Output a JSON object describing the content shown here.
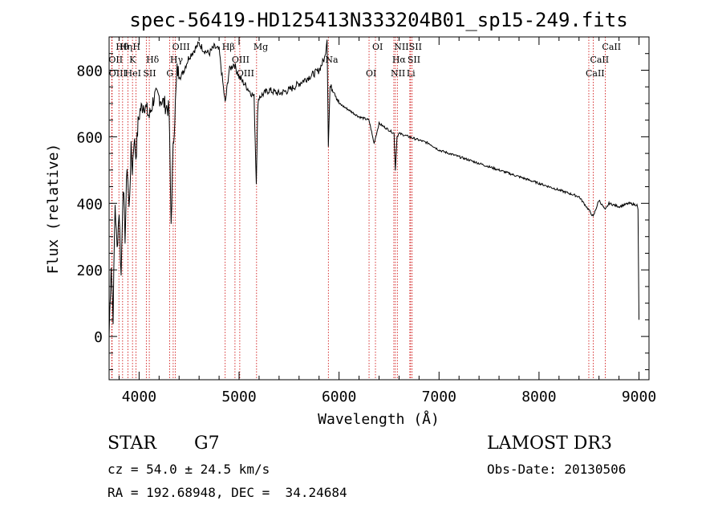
{
  "chart_data": {
    "type": "line",
    "title": "spec-56419-HD125413N333204B01_sp15-249.fits",
    "xlabel": "Wavelength (Å)",
    "ylabel": "Flux (relative)",
    "xlim": [
      3700,
      9100
    ],
    "ylim": [
      -130,
      900
    ],
    "xticks": [
      4000,
      5000,
      6000,
      7000,
      8000,
      9000
    ],
    "yticks": [
      0,
      200,
      400,
      600,
      800
    ],
    "series": [
      {
        "name": "flux",
        "x": [
          3700,
          3720,
          3740,
          3760,
          3780,
          3800,
          3820,
          3840,
          3860,
          3880,
          3900,
          3920,
          3933,
          3950,
          3968,
          3990,
          4010,
          4050,
          4102,
          4150,
          4200,
          4250,
          4300,
          4320,
          4340,
          4380,
          4420,
          4500,
          4550,
          4600,
          4650,
          4700,
          4750,
          4800,
          4861,
          4900,
          4950,
          5000,
          5050,
          5100,
          5150,
          5172,
          5185,
          5200,
          5300,
          5400,
          5500,
          5600,
          5700,
          5800,
          5860,
          5880,
          5893,
          5910,
          5950,
          6000,
          6100,
          6200,
          6300,
          6350,
          6400,
          6500,
          6550,
          6563,
          6580,
          6600,
          6700,
          6800,
          6900,
          7000,
          7200,
          7400,
          7600,
          7800,
          8000,
          8200,
          8400,
          8498,
          8542,
          8600,
          8662,
          8700,
          8800,
          8900,
          8980,
          8990,
          9000
        ],
        "y": [
          0,
          220,
          60,
          400,
          260,
          380,
          180,
          460,
          300,
          520,
          380,
          560,
          500,
          600,
          540,
          640,
          680,
          700,
          660,
          720,
          720,
          700,
          680,
          340,
          560,
          800,
          780,
          840,
          860,
          880,
          860,
          850,
          870,
          860,
          700,
          800,
          820,
          780,
          760,
          740,
          720,
          460,
          680,
          720,
          740,
          730,
          740,
          760,
          780,
          800,
          840,
          900,
          580,
          750,
          740,
          700,
          680,
          660,
          650,
          580,
          640,
          620,
          610,
          500,
          600,
          610,
          600,
          590,
          580,
          560,
          540,
          520,
          500,
          480,
          460,
          440,
          420,
          380,
          360,
          410,
          380,
          400,
          390,
          400,
          395,
          380,
          50
        ]
      }
    ],
    "line_labels": [
      {
        "label": "Hθ",
        "wavelength": 3798
      },
      {
        "label": "OII",
        "wavelength": 3727
      },
      {
        "label": "OIII",
        "wavelength": 3730
      },
      {
        "label": "Hη",
        "wavelength": 3835
      },
      {
        "label": "K",
        "wavelength": 3934
      },
      {
        "label": "HeI",
        "wavelength": 3889
      },
      {
        "label": "H",
        "wavelength": 3968
      },
      {
        "label": "Hδ",
        "wavelength": 4102
      },
      {
        "label": "SII",
        "wavelength": 4072
      },
      {
        "label": "OIII",
        "wavelength": 4363
      },
      {
        "label": "Hγ",
        "wavelength": 4341
      },
      {
        "label": "G",
        "wavelength": 4305
      },
      {
        "label": "Hβ",
        "wavelength": 4861
      },
      {
        "label": "OIII",
        "wavelength": 4959
      },
      {
        "label": "OIII",
        "wavelength": 5007
      },
      {
        "label": "Mg",
        "wavelength": 5175
      },
      {
        "label": "Na",
        "wavelength": 5893
      },
      {
        "label": "OI",
        "wavelength": 6300
      },
      {
        "label": "OI",
        "wavelength": 6364
      },
      {
        "label": "Hα",
        "wavelength": 6563
      },
      {
        "label": "NII",
        "wavelength": 6548
      },
      {
        "label": "NII",
        "wavelength": 6583
      },
      {
        "label": "SII",
        "wavelength": 6716
      },
      {
        "label": "Li",
        "wavelength": 6708
      },
      {
        "label": "SII",
        "wavelength": 6731
      },
      {
        "label": "CaII",
        "wavelength": 8542
      },
      {
        "label": "CaII",
        "wavelength": 8498
      },
      {
        "label": "CaII",
        "wavelength": 8662
      }
    ]
  },
  "info": {
    "object_class": "STAR",
    "subclass": "G7",
    "survey": "LAMOST DR3",
    "redshift": "cz = 54.0 ± 24.5 km/s",
    "obs_date": "Obs-Date: 20130506",
    "coords": "RA = 192.68948, DEC =  34.24684"
  },
  "colors": {
    "line": "#000000",
    "marker": "#cc0000",
    "axis": "#000000"
  }
}
